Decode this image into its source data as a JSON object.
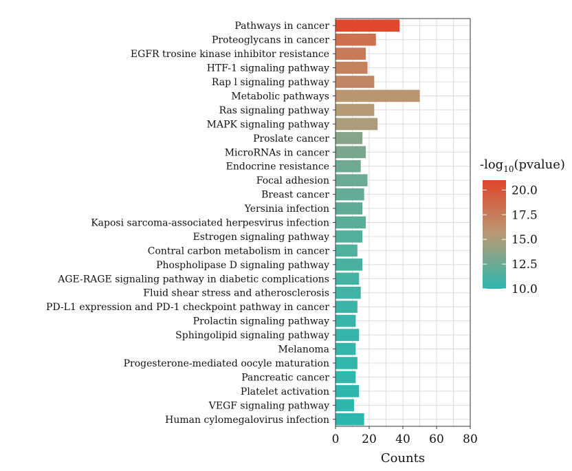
{
  "chart_data": {
    "type": "bar",
    "orientation": "horizontal",
    "xlabel": "Counts",
    "ylabel": "",
    "xlim": [
      0,
      80
    ],
    "xticks": [
      "0",
      "20",
      "40",
      "60",
      "80"
    ],
    "grid": true,
    "legend": {
      "title_prefix": "-log",
      "title_subscript": "10",
      "title_suffix": "(pvalue)",
      "placement": "right",
      "range": [
        10,
        21
      ],
      "ticks": [
        "20.0",
        "17.5",
        "15.0",
        "12.5",
        "10.0"
      ],
      "tick_values": [
        20,
        17.5,
        15,
        12.5,
        10
      ],
      "colors": {
        "low": "#2bb7ad",
        "mid": "#b89a74",
        "high": "#e0452a"
      }
    },
    "categories": [
      "Pathways in cancer",
      "Proteoglycans in cancer",
      "EGFR trosine kinase inhibitor resistance",
      "HTF-1 signaling pathway",
      "Rap l signaling pathway",
      "Metabolic pathways",
      "Ras signaling pathway",
      "MAPK signaling pathway",
      "Proslate cancer",
      "MicroRNAs in cancer",
      "Endocrine resistance",
      "Focal adhesion",
      "Breast cancer",
      "Yersinia infection",
      "Kaposi sarcoma-associated herpesvirus infection",
      "Estrogen signaling pathway",
      "Contral carbon metabolism in cancer",
      "Phospholipase D signaling pathway",
      "AGE-RAGE signaling pathway in diabetic complications",
      "Fluid shear stress and atherosclerosis",
      "PD-L1 expression and PD-1 checkpoint pathway in cancer",
      "Prolactin signaling pathway",
      "Sphingolipid signaling pathway",
      "Melanoma",
      "Progesterone-mediated oocyle maturation",
      "Pancreatic cancer",
      "Platelet activation",
      "VEGF signaling pathway",
      "Human cylomegalovirus infection"
    ],
    "values": [
      38,
      24,
      18,
      19,
      23,
      50,
      23,
      25,
      16,
      18,
      15,
      19,
      17,
      16,
      18,
      16,
      13,
      16,
      14,
      15,
      13,
      12,
      14,
      12,
      13,
      12,
      14,
      11,
      17
    ],
    "neglog10_pvalue": [
      20.8,
      18.2,
      17.5,
      17.1,
      16.8,
      15.8,
      15.4,
      15.0,
      13.6,
      13.0,
      12.7,
      12.5,
      12.2,
      12.0,
      11.8,
      11.6,
      11.4,
      11.2,
      11.0,
      10.8,
      10.6,
      10.5,
      10.4,
      10.3,
      10.2,
      10.2,
      10.1,
      10.1,
      10.0
    ]
  }
}
